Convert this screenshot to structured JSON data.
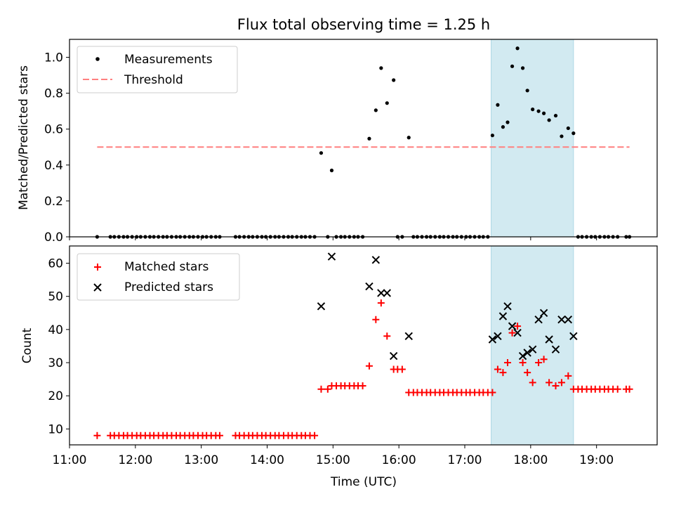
{
  "chart_data": [
    {
      "type": "scatter",
      "title": "Flux total observing time = 1.25 h",
      "xlabel": "",
      "ylabel": "Matched/Predicted stars",
      "xlim": [
        11.0,
        19.92
      ],
      "ylim": [
        0.0,
        1.1
      ],
      "yticks": [
        "0.0",
        "0.2",
        "0.4",
        "0.6",
        "0.8",
        "1.0"
      ],
      "ytick_values": [
        0.0,
        0.2,
        0.4,
        0.6,
        0.8,
        1.0
      ],
      "highlight_span": [
        17.4,
        18.65
      ],
      "highlight_color": "#add8e6",
      "legend": {
        "placement": "upper-left",
        "entries": [
          "Measurements",
          "Threshold"
        ]
      },
      "series": [
        {
          "name": "Measurements",
          "marker": "dot",
          "color": "#000000",
          "x": [
            11.42,
            11.62,
            11.68,
            11.75,
            11.82,
            11.88,
            11.95,
            12.02,
            12.08,
            12.15,
            12.22,
            12.28,
            12.35,
            12.42,
            12.48,
            12.55,
            12.62,
            12.68,
            12.75,
            12.82,
            12.88,
            12.95,
            13.02,
            13.08,
            13.15,
            13.22,
            13.28,
            13.52,
            13.58,
            13.65,
            13.72,
            13.78,
            13.85,
            13.92,
            13.98,
            14.05,
            14.12,
            14.18,
            14.25,
            14.32,
            14.38,
            14.45,
            14.52,
            14.58,
            14.65,
            14.72,
            14.82,
            14.92,
            14.98,
            15.05,
            15.12,
            15.18,
            15.25,
            15.32,
            15.38,
            15.45,
            15.55,
            15.65,
            15.73,
            15.82,
            15.92,
            15.98,
            16.05,
            16.15,
            16.22,
            16.28,
            16.35,
            16.42,
            16.48,
            16.55,
            16.62,
            16.68,
            16.75,
            16.82,
            16.88,
            16.95,
            17.02,
            17.08,
            17.15,
            17.22,
            17.28,
            17.35,
            17.42,
            17.5,
            17.58,
            17.65,
            17.72,
            17.8,
            17.88,
            17.95,
            18.03,
            18.12,
            18.2,
            18.28,
            18.38,
            18.47,
            18.57,
            18.65,
            18.72,
            18.78,
            18.85,
            18.92,
            18.98,
            19.05,
            19.12,
            19.18,
            19.25,
            19.32,
            19.45,
            19.5
          ],
          "y": [
            0,
            0,
            0,
            0,
            0,
            0,
            0,
            0,
            0,
            0,
            0,
            0,
            0,
            0,
            0,
            0,
            0,
            0,
            0,
            0,
            0,
            0,
            0,
            0,
            0,
            0,
            0,
            0,
            0,
            0,
            0,
            0,
            0,
            0,
            0,
            0,
            0,
            0,
            0,
            0,
            0,
            0,
            0,
            0,
            0,
            0,
            0.467,
            0,
            0.37,
            0,
            0,
            0,
            0,
            0,
            0,
            0,
            0.547,
            0.705,
            0.94,
            0.745,
            0.873,
            0,
            0,
            0.553,
            0,
            0,
            0,
            0,
            0,
            0,
            0,
            0,
            0,
            0,
            0,
            0,
            0,
            0,
            0,
            0,
            0,
            0,
            0.565,
            0.735,
            0.612,
            0.638,
            0.95,
            1.05,
            0.94,
            0.815,
            0.71,
            0.7,
            0.688,
            0.65,
            0.675,
            0.56,
            0.605,
            0.577,
            0,
            0,
            0,
            0,
            0,
            0,
            0,
            0,
            0,
            0,
            0,
            0
          ]
        },
        {
          "name": "Threshold",
          "marker": "dashed-line",
          "color": "#ff7f7f",
          "x": [
            11.42,
            19.5
          ],
          "y": [
            0.5,
            0.5
          ]
        }
      ]
    },
    {
      "type": "scatter",
      "title": "",
      "xlabel": "Time (UTC)",
      "ylabel": "Count",
      "xlim": [
        11.0,
        19.92
      ],
      "ylim": [
        5.2,
        65.2
      ],
      "xticks": [
        "11:00",
        "12:00",
        "13:00",
        "14:00",
        "15:00",
        "16:00",
        "17:00",
        "18:00",
        "19:00"
      ],
      "xtick_values": [
        11,
        12,
        13,
        14,
        15,
        16,
        17,
        18,
        19
      ],
      "yticks": [
        "10",
        "20",
        "30",
        "40",
        "50",
        "60"
      ],
      "ytick_values": [
        10,
        20,
        30,
        40,
        50,
        60
      ],
      "highlight_span": [
        17.4,
        18.65
      ],
      "highlight_color": "#add8e6",
      "legend": {
        "placement": "upper-left",
        "entries": [
          "Matched stars",
          "Predicted stars"
        ]
      },
      "series": [
        {
          "name": "Matched stars",
          "marker": "plus",
          "color": "#ff0000",
          "x": [
            11.42,
            11.62,
            11.68,
            11.75,
            11.82,
            11.88,
            11.95,
            12.02,
            12.08,
            12.15,
            12.22,
            12.28,
            12.35,
            12.42,
            12.48,
            12.55,
            12.62,
            12.68,
            12.75,
            12.82,
            12.88,
            12.95,
            13.02,
            13.08,
            13.15,
            13.22,
            13.28,
            13.52,
            13.58,
            13.65,
            13.72,
            13.78,
            13.85,
            13.92,
            13.98,
            14.05,
            14.12,
            14.18,
            14.25,
            14.32,
            14.38,
            14.45,
            14.52,
            14.58,
            14.65,
            14.72,
            14.82,
            14.92,
            14.98,
            15.05,
            15.12,
            15.18,
            15.25,
            15.32,
            15.38,
            15.45,
            15.55,
            15.65,
            15.73,
            15.82,
            15.92,
            15.98,
            16.05,
            16.15,
            16.22,
            16.28,
            16.35,
            16.42,
            16.48,
            16.55,
            16.62,
            16.68,
            16.75,
            16.82,
            16.88,
            16.95,
            17.02,
            17.08,
            17.15,
            17.22,
            17.28,
            17.35,
            17.42,
            17.5,
            17.58,
            17.65,
            17.72,
            17.8,
            17.88,
            17.95,
            18.03,
            18.12,
            18.2,
            18.28,
            18.38,
            18.47,
            18.57,
            18.65,
            18.72,
            18.78,
            18.85,
            18.92,
            18.98,
            19.05,
            19.12,
            19.18,
            19.25,
            19.32,
            19.45,
            19.5
          ],
          "y": [
            8,
            8,
            8,
            8,
            8,
            8,
            8,
            8,
            8,
            8,
            8,
            8,
            8,
            8,
            8,
            8,
            8,
            8,
            8,
            8,
            8,
            8,
            8,
            8,
            8,
            8,
            8,
            8,
            8,
            8,
            8,
            8,
            8,
            8,
            8,
            8,
            8,
            8,
            8,
            8,
            8,
            8,
            8,
            8,
            8,
            8,
            22,
            22,
            23,
            23,
            23,
            23,
            23,
            23,
            23,
            23,
            29,
            43,
            48,
            38,
            28,
            28,
            28,
            21,
            21,
            21,
            21,
            21,
            21,
            21,
            21,
            21,
            21,
            21,
            21,
            21,
            21,
            21,
            21,
            21,
            21,
            21,
            21,
            28,
            27,
            30,
            39,
            41,
            30,
            27,
            24,
            30,
            31,
            24,
            23,
            24,
            26,
            22,
            22,
            22,
            22,
            22,
            22,
            22,
            22,
            22,
            22,
            22,
            22,
            22
          ]
        },
        {
          "name": "Predicted stars",
          "marker": "x",
          "color": "#000000",
          "x": [
            14.82,
            14.98,
            15.55,
            15.65,
            15.73,
            15.82,
            15.92,
            16.15,
            17.42,
            17.5,
            17.58,
            17.65,
            17.72,
            17.8,
            17.88,
            17.95,
            18.03,
            18.12,
            18.2,
            18.28,
            18.38,
            18.47,
            18.57,
            18.65
          ],
          "y": [
            47,
            62,
            53,
            61,
            51,
            51,
            32,
            38,
            37,
            38,
            44,
            47,
            41,
            39,
            32,
            33,
            34,
            43,
            45,
            37,
            34,
            43,
            43,
            38
          ]
        }
      ]
    }
  ]
}
